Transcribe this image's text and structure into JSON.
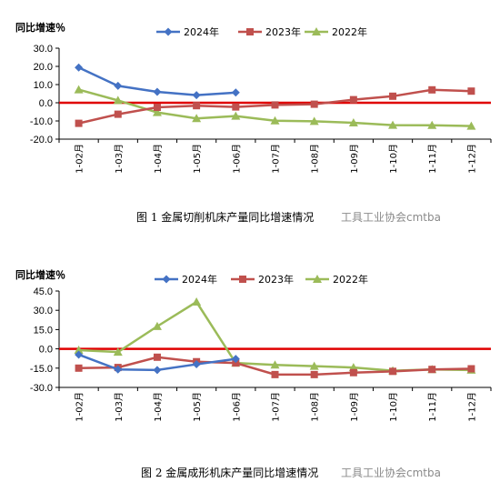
{
  "chart_data": [
    {
      "type": "line",
      "ylabel": "同比增速％",
      "caption": "图 1  金属切削机床产量同比增速情况",
      "watermark": "工具工业协会cmtba",
      "ylim": [
        -20,
        30
      ],
      "yticks": [
        "30.0",
        "20.0",
        "10.0",
        "0.0",
        "-10.0",
        "-20.0"
      ],
      "categories": [
        "1-02月",
        "1-03月",
        "1-04月",
        "1-05月",
        "1-06月",
        "1-07月",
        "1-08月",
        "1-09月",
        "1-10月",
        "1-11月",
        "1-12月"
      ],
      "grid": false,
      "legend_position": "top",
      "zero_line_color": "#e00000",
      "series": [
        {
          "name": "2024年",
          "color": "#4472c4",
          "marker": "diamond",
          "values": [
            19.4,
            9.3,
            6.0,
            4.2,
            5.6,
            null,
            null,
            null,
            null,
            null,
            null
          ]
        },
        {
          "name": "2023年",
          "color": "#c0504d",
          "marker": "square",
          "values": [
            -11.3,
            -6.3,
            -2.5,
            -1.6,
            -2.3,
            -1.2,
            -0.8,
            1.7,
            3.6,
            7.1,
            6.4
          ]
        },
        {
          "name": "2022年",
          "color": "#9bbb59",
          "marker": "triangle",
          "values": [
            7.2,
            1.3,
            -5.3,
            -8.6,
            -7.3,
            -9.9,
            -10.2,
            -11.0,
            -12.3,
            -12.4,
            -12.8
          ]
        }
      ]
    },
    {
      "type": "line",
      "ylabel": "同比增速％",
      "caption": "图 2  金属成形机床产量同比增速情况",
      "watermark": "工具工业协会cmtba",
      "ylim": [
        -30,
        45
      ],
      "yticks": [
        "45.0",
        "30.0",
        "15.0",
        "0.0",
        "-15.0",
        "-30.0"
      ],
      "categories": [
        "1-02月",
        "1-03月",
        "1-04月",
        "1-05月",
        "1-06月",
        "1-07月",
        "1-08月",
        "1-09月",
        "1-10月",
        "1-11月",
        "1-12月"
      ],
      "grid": false,
      "legend_position": "top",
      "zero_line_color": "#e00000",
      "series": [
        {
          "name": "2024年",
          "color": "#4472c4",
          "marker": "diamond",
          "values": [
            -4.5,
            -16.0,
            -16.5,
            -12.0,
            -7.8,
            null,
            null,
            null,
            null,
            null,
            null
          ]
        },
        {
          "name": "2023年",
          "color": "#c0504d",
          "marker": "square",
          "values": [
            -15.0,
            -14.5,
            -6.5,
            -10.0,
            -11.0,
            -20.0,
            -20.0,
            -18.5,
            -17.5,
            -16.0,
            -15.5
          ]
        },
        {
          "name": "2022年",
          "color": "#9bbb59",
          "marker": "triangle",
          "values": [
            -1.0,
            -2.5,
            17.5,
            36.5,
            -11.0,
            -12.5,
            -13.5,
            -14.5,
            -17.0,
            -16.0,
            -16.5
          ]
        }
      ]
    }
  ]
}
